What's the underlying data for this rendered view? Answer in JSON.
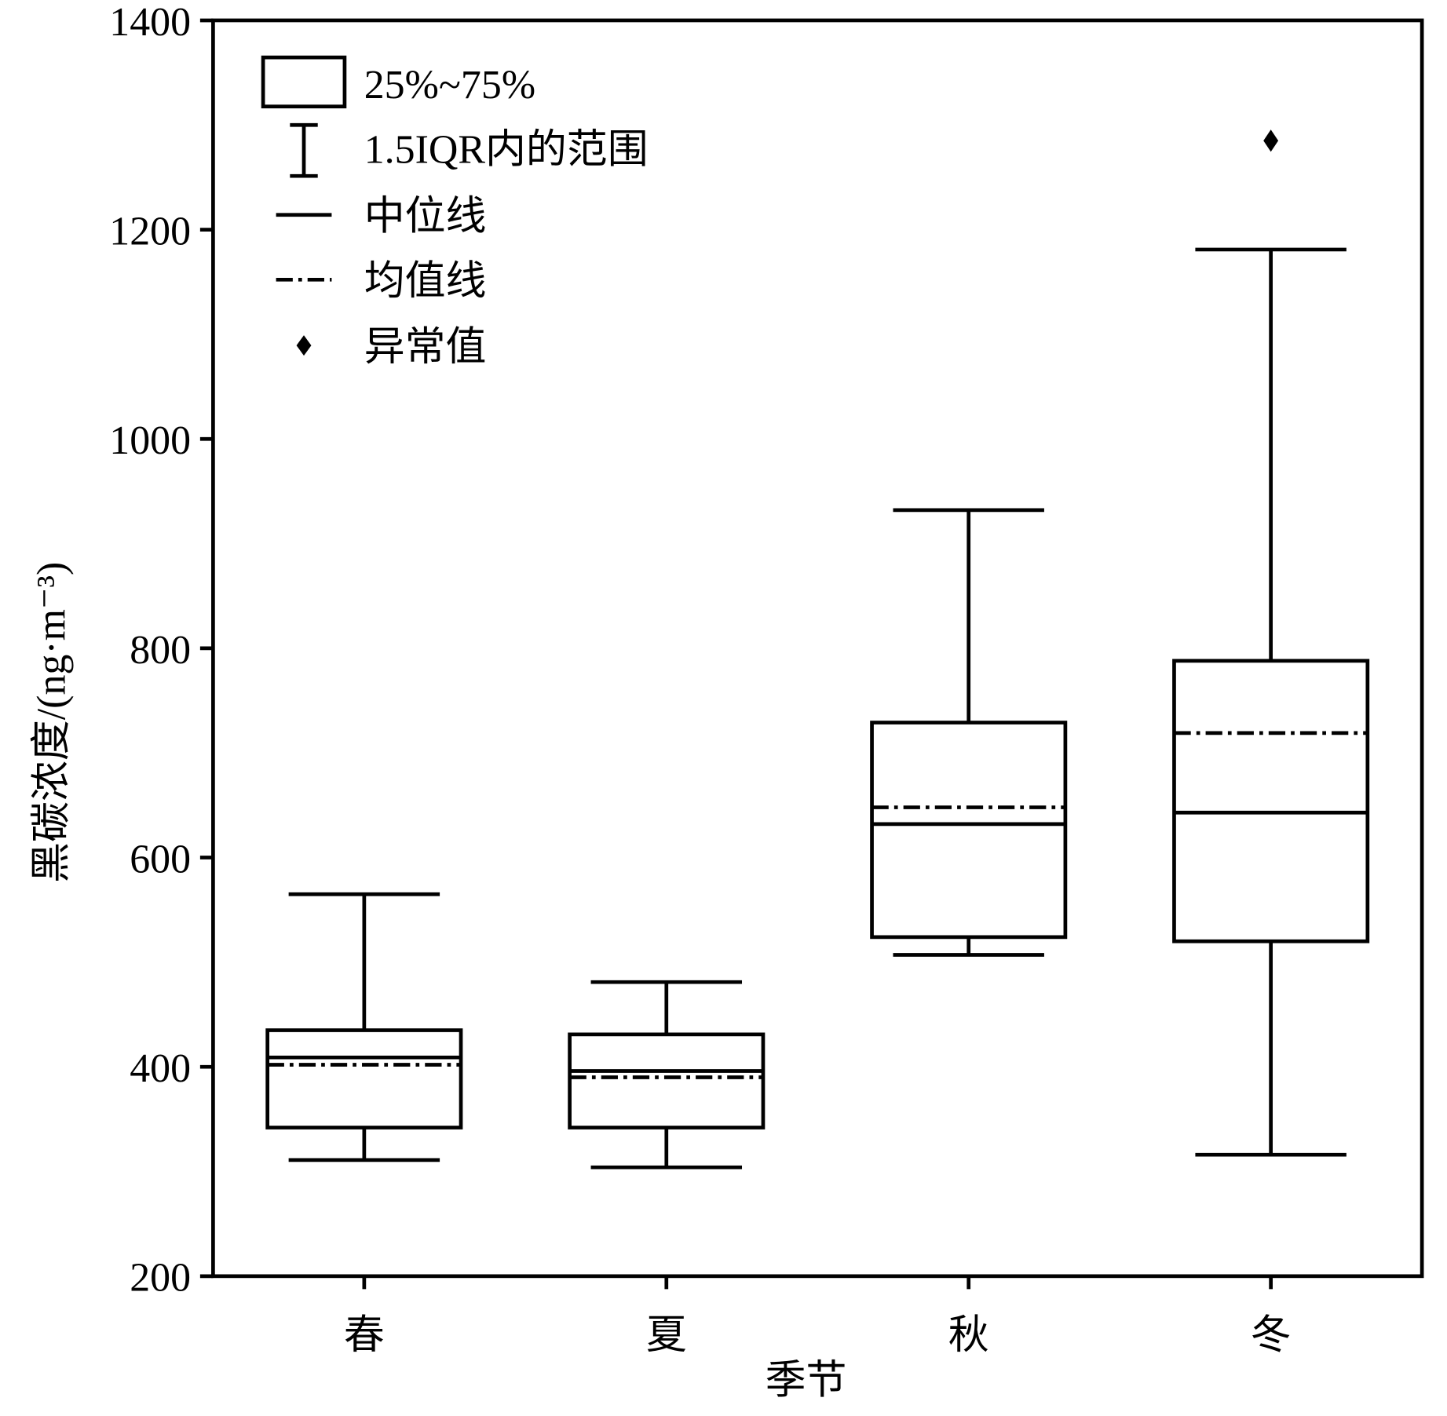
{
  "chart_data": {
    "type": "box",
    "xlabel": "季节",
    "ylabel": "黑碳浓度/(ng·m⁻³)",
    "categories": [
      "春",
      "夏",
      "秋",
      "冬"
    ],
    "whisker_low": [
      311,
      304,
      507,
      316
    ],
    "q1": [
      342,
      342,
      524,
      520
    ],
    "median": [
      409,
      396,
      632,
      643
    ],
    "mean": [
      402,
      390,
      648,
      719
    ],
    "q3": [
      435,
      431,
      729,
      788
    ],
    "whisker_high": [
      565,
      481,
      932,
      1181
    ],
    "outliers": [
      [],
      [],
      [],
      [
        1285
      ]
    ],
    "ylim": [
      200,
      1400
    ],
    "yticks": [
      200,
      400,
      600,
      800,
      1000,
      1200,
      1400
    ],
    "legend": {
      "box": "25%~75%",
      "whisker": "1.5IQR内的范围",
      "median": "中位线",
      "mean": "均值线",
      "outlier": "异常值"
    },
    "legend_position": "upper left",
    "color": "#000000"
  }
}
